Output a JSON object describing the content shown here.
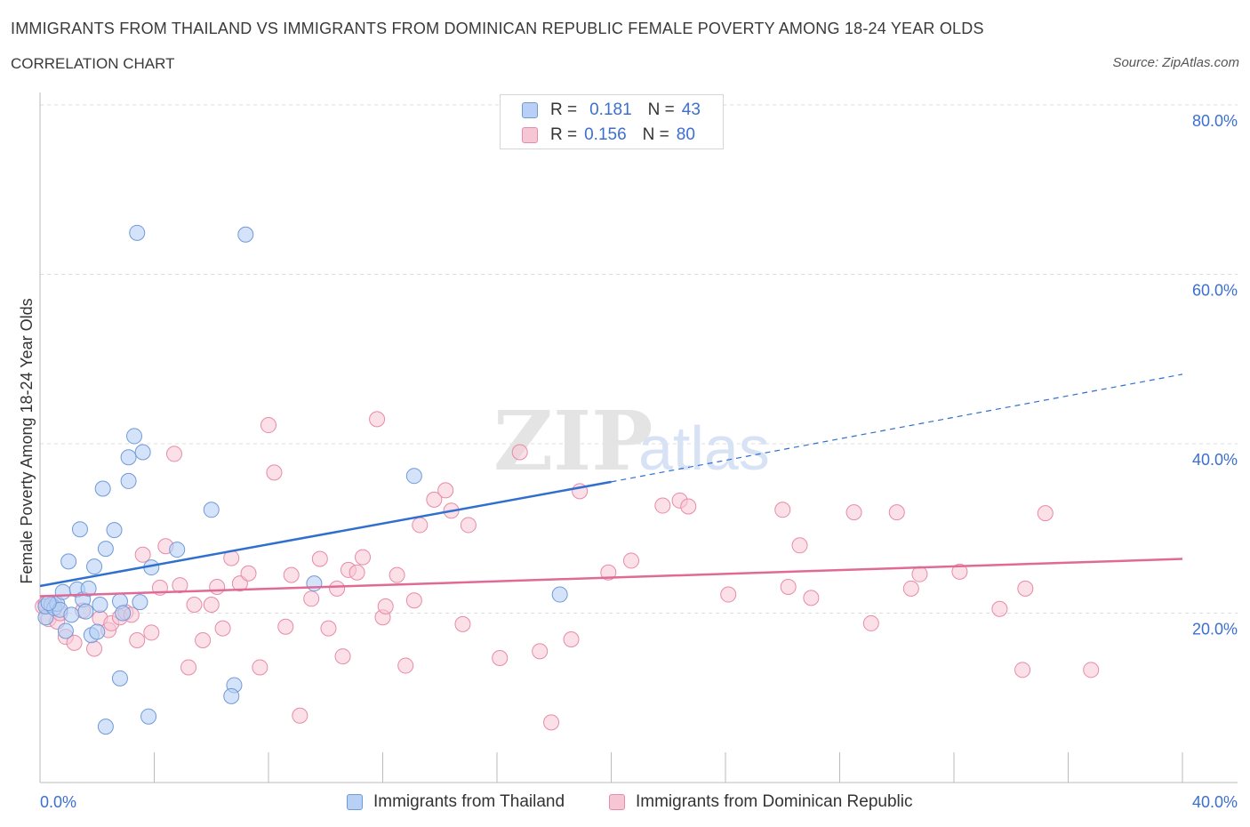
{
  "header": {
    "title": "IMMIGRANTS FROM THAILAND VS IMMIGRANTS FROM DOMINICAN REPUBLIC FEMALE POVERTY AMONG 18-24 YEAR OLDS",
    "subtitle": "CORRELATION CHART",
    "source": "Source: ZipAtlas.com"
  },
  "watermark": {
    "zip": "ZIP",
    "atlas": "atlas"
  },
  "legend": {
    "rows": [
      {
        "r_label": "R =",
        "r_value": "0.181",
        "n_label": "N =",
        "n_value": "43"
      },
      {
        "r_label": "R =",
        "r_value": "0.156",
        "n_label": "N =",
        "n_value": "80"
      }
    ]
  },
  "colors": {
    "thailand_fill": "#b8d0f5",
    "thailand_stroke": "#6f9ad8",
    "thailand_line": "#2f6fd0",
    "dominican_fill": "#f7c6d5",
    "dominican_stroke": "#e88aa8",
    "dominican_line": "#e06a95",
    "axis_text": "#3b6fd0",
    "grid": "#dddddd"
  },
  "chart_data": {
    "type": "scatter",
    "title": "IMMIGRANTS FROM THAILAND VS IMMIGRANTS FROM DOMINICAN REPUBLIC FEMALE POVERTY AMONG 18-24 YEAR OLDS",
    "xlabel": "",
    "ylabel": "Female Poverty Among 18-24 Year Olds",
    "xlim": [
      0,
      40
    ],
    "ylim": [
      0,
      80
    ],
    "x_tick_labels": [
      "0.0%",
      "40.0%"
    ],
    "y_tick_labels": [
      "20.0%",
      "40.0%",
      "60.0%",
      "80.0%"
    ],
    "y_ticks": [
      20,
      40,
      60,
      80
    ],
    "grid": true,
    "legend_position": "top-center",
    "series": [
      {
        "name": "Immigrants from Thailand",
        "R": 0.181,
        "N": 43,
        "trend": {
          "x0": 0,
          "y0": 23.2,
          "x1": 20,
          "y1": 35.5,
          "dash_x1": 40,
          "dash_y1": 48.2
        },
        "points": [
          [
            0.2,
            19.5
          ],
          [
            0.2,
            20.8
          ],
          [
            0.4,
            21.0
          ],
          [
            0.5,
            20.6
          ],
          [
            0.6,
            21.1
          ],
          [
            0.7,
            20.4
          ],
          [
            0.8,
            22.5
          ],
          [
            0.9,
            17.9
          ],
          [
            1.0,
            26.1
          ],
          [
            1.1,
            19.8
          ],
          [
            1.3,
            22.8
          ],
          [
            1.4,
            29.9
          ],
          [
            1.5,
            21.6
          ],
          [
            1.6,
            20.2
          ],
          [
            1.7,
            22.9
          ],
          [
            1.8,
            17.4
          ],
          [
            1.9,
            25.5
          ],
          [
            2.0,
            17.8
          ],
          [
            2.1,
            21.0
          ],
          [
            2.2,
            34.7
          ],
          [
            2.3,
            27.6
          ],
          [
            2.3,
            6.6
          ],
          [
            2.6,
            29.8
          ],
          [
            2.8,
            21.4
          ],
          [
            2.8,
            12.3
          ],
          [
            2.9,
            20.0
          ],
          [
            3.1,
            35.6
          ],
          [
            3.1,
            38.4
          ],
          [
            3.3,
            40.9
          ],
          [
            3.4,
            64.9
          ],
          [
            3.5,
            21.3
          ],
          [
            3.6,
            39.0
          ],
          [
            3.8,
            7.8
          ],
          [
            3.9,
            25.4
          ],
          [
            4.8,
            27.5
          ],
          [
            6.0,
            32.2
          ],
          [
            6.8,
            11.5
          ],
          [
            6.7,
            10.2
          ],
          [
            7.2,
            64.7
          ],
          [
            9.6,
            23.5
          ],
          [
            13.1,
            36.2
          ],
          [
            18.2,
            22.2
          ],
          [
            0.3,
            21.2
          ]
        ]
      },
      {
        "name": "Immigrants from Dominican Republic",
        "R": 0.156,
        "N": 80,
        "trend": {
          "x0": 0,
          "y0": 22.0,
          "x1": 40,
          "y1": 26.4
        },
        "points": [
          [
            0.1,
            20.8
          ],
          [
            0.2,
            21.1
          ],
          [
            0.3,
            19.3
          ],
          [
            0.5,
            21.1
          ],
          [
            0.6,
            19.0
          ],
          [
            0.7,
            20.0
          ],
          [
            0.9,
            17.2
          ],
          [
            1.2,
            16.5
          ],
          [
            1.5,
            20.3
          ],
          [
            1.9,
            15.8
          ],
          [
            2.1,
            19.4
          ],
          [
            2.4,
            18.0
          ],
          [
            2.5,
            18.8
          ],
          [
            2.8,
            19.5
          ],
          [
            3.0,
            20.1
          ],
          [
            3.2,
            19.8
          ],
          [
            3.4,
            16.8
          ],
          [
            3.6,
            26.9
          ],
          [
            3.9,
            17.7
          ],
          [
            4.2,
            23.0
          ],
          [
            4.4,
            27.9
          ],
          [
            4.7,
            38.8
          ],
          [
            4.9,
            23.3
          ],
          [
            5.2,
            13.6
          ],
          [
            5.4,
            21.0
          ],
          [
            5.7,
            16.8
          ],
          [
            6.0,
            21.0
          ],
          [
            6.2,
            23.1
          ],
          [
            6.4,
            18.2
          ],
          [
            6.7,
            26.5
          ],
          [
            7.0,
            23.5
          ],
          [
            7.3,
            24.7
          ],
          [
            7.7,
            13.6
          ],
          [
            8.0,
            42.2
          ],
          [
            8.2,
            36.6
          ],
          [
            8.6,
            18.4
          ],
          [
            8.8,
            24.5
          ],
          [
            9.1,
            7.9
          ],
          [
            9.5,
            21.7
          ],
          [
            9.8,
            26.4
          ],
          [
            10.1,
            18.2
          ],
          [
            10.4,
            22.9
          ],
          [
            10.6,
            14.9
          ],
          [
            10.8,
            25.1
          ],
          [
            11.1,
            24.8
          ],
          [
            11.3,
            26.6
          ],
          [
            11.8,
            42.9
          ],
          [
            12.0,
            19.5
          ],
          [
            12.1,
            20.8
          ],
          [
            12.5,
            24.5
          ],
          [
            12.8,
            13.8
          ],
          [
            13.1,
            21.5
          ],
          [
            13.3,
            30.4
          ],
          [
            13.8,
            33.4
          ],
          [
            14.2,
            34.5
          ],
          [
            14.4,
            32.1
          ],
          [
            14.8,
            18.7
          ],
          [
            15.0,
            30.4
          ],
          [
            16.1,
            14.7
          ],
          [
            16.8,
            39.0
          ],
          [
            17.5,
            15.5
          ],
          [
            17.9,
            7.1
          ],
          [
            18.6,
            16.9
          ],
          [
            18.9,
            34.4
          ],
          [
            19.9,
            24.8
          ],
          [
            20.7,
            26.2
          ],
          [
            21.8,
            32.7
          ],
          [
            22.4,
            33.3
          ],
          [
            22.7,
            32.6
          ],
          [
            24.1,
            22.2
          ],
          [
            26.0,
            32.2
          ],
          [
            26.2,
            23.1
          ],
          [
            26.6,
            28.0
          ],
          [
            27.0,
            21.8
          ],
          [
            28.5,
            31.9
          ],
          [
            29.1,
            18.8
          ],
          [
            30.0,
            31.9
          ],
          [
            30.5,
            22.9
          ],
          [
            30.8,
            24.6
          ],
          [
            32.2,
            24.9
          ]
        ]
      }
    ]
  },
  "extra_points_dominican": [
    [
      35.2,
      31.8
    ],
    [
      33.6,
      20.5
    ],
    [
      34.5,
      22.9
    ],
    [
      34.4,
      13.3
    ],
    [
      36.8,
      13.3
    ]
  ],
  "bottom_legend": {
    "thailand": "Immigrants from Thailand",
    "dominican": "Immigrants from Dominican Republic"
  }
}
